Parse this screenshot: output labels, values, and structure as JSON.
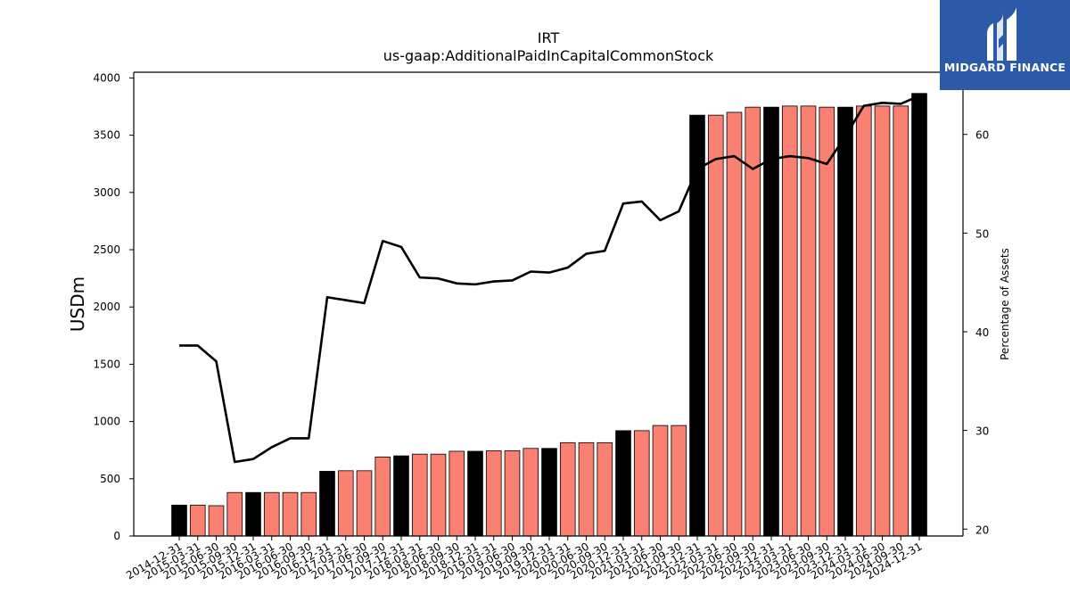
{
  "logo": {
    "text": "MIDGARD FINANCE",
    "background": "#2c5aa8"
  },
  "chart_data": {
    "type": "bar",
    "title": "IRT",
    "subtitle": "us-gaap:AdditionalPaidInCapitalCommonStock",
    "ylabel": "USDm",
    "y2label": "Percentage of Assets",
    "ylim": [
      0,
      4050
    ],
    "y2lim": [
      19.3,
      66.3
    ],
    "yticks": [
      0,
      500,
      1000,
      1500,
      2000,
      2500,
      3000,
      3500,
      4000
    ],
    "y2ticks": [
      20,
      30,
      40,
      50,
      60
    ],
    "colors": {
      "annual_bar": "#000000",
      "quarter_bar": "#fa8072",
      "line": "#000000"
    },
    "categories": [
      "2014-12-31",
      "2015-03-31",
      "2015-06-30",
      "2015-09-30",
      "2015-12-31",
      "2016-03-31",
      "2016-06-30",
      "2016-09-30",
      "2016-12-31",
      "2017-03-31",
      "2017-06-30",
      "2017-09-30",
      "2017-12-31",
      "2018-03-31",
      "2018-06-30",
      "2018-09-30",
      "2018-12-31",
      "2019-03-31",
      "2019-06-30",
      "2019-09-30",
      "2019-12-31",
      "2020-03-31",
      "2020-06-30",
      "2020-09-30",
      "2020-12-31",
      "2021-03-31",
      "2021-06-30",
      "2021-09-30",
      "2021-12-31",
      "2022-03-31",
      "2022-06-30",
      "2022-09-30",
      "2022-12-31",
      "2023-03-31",
      "2023-06-30",
      "2023-09-30",
      "2023-12-31",
      "2024-03-31",
      "2024-06-30",
      "2024-09-30",
      "2024-12-31"
    ],
    "series": [
      {
        "kind": "bar",
        "axis": "left",
        "values": [
          270,
          270,
          265,
          380,
          380,
          380,
          380,
          380,
          565,
          570,
          570,
          690,
          700,
          715,
          715,
          740,
          740,
          745,
          745,
          765,
          765,
          815,
          815,
          815,
          920,
          920,
          965,
          965,
          3675,
          3675,
          3700,
          3745,
          3745,
          3755,
          3755,
          3745,
          3745,
          3755,
          3755,
          3755,
          3865
        ],
        "annual": [
          true,
          false,
          false,
          false,
          true,
          false,
          false,
          false,
          true,
          false,
          false,
          false,
          true,
          false,
          false,
          false,
          true,
          false,
          false,
          false,
          true,
          false,
          false,
          false,
          true,
          false,
          false,
          false,
          true,
          false,
          false,
          false,
          true,
          false,
          false,
          false,
          true,
          false,
          false,
          false,
          true
        ]
      },
      {
        "kind": "line",
        "axis": "right",
        "values": [
          38.6,
          38.6,
          37.0,
          26.8,
          27.1,
          28.3,
          29.2,
          29.2,
          43.5,
          43.2,
          42.9,
          49.2,
          48.6,
          45.5,
          45.4,
          44.9,
          44.8,
          45.1,
          45.2,
          46.1,
          46.0,
          46.5,
          47.9,
          48.2,
          53.0,
          53.2,
          51.3,
          52.2,
          56.5,
          57.5,
          57.8,
          56.5,
          57.5,
          57.8,
          57.6,
          57.0,
          59.8,
          62.9,
          63.2,
          63.1,
          63.9
        ]
      }
    ]
  }
}
